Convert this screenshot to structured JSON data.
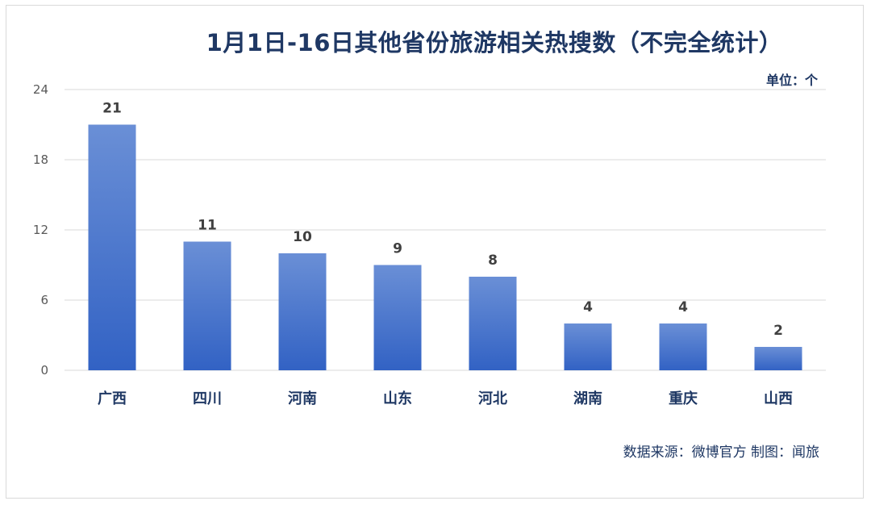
{
  "colors": {
    "title": "#1f3864",
    "bar_top": "#6a8fd6",
    "bar_bottom": "#3262c4",
    "grid": "#d9d9d9",
    "axis_text": "#595959"
  },
  "chart_data": {
    "type": "bar",
    "title": "1月1日-16日其他省份旅游相关热搜数（不完全统计）",
    "unit_label": "单位：个",
    "categories": [
      "广西",
      "四川",
      "河南",
      "山东",
      "河北",
      "湖南",
      "重庆",
      "山西"
    ],
    "values": [
      21,
      11,
      10,
      9,
      8,
      4,
      4,
      2
    ],
    "ylim": [
      0,
      24
    ],
    "yticks": [
      0,
      6,
      12,
      18,
      24
    ],
    "grid": true,
    "xlabel": "",
    "ylabel": "",
    "source": "数据来源：微博官方    制图：闻旅"
  }
}
